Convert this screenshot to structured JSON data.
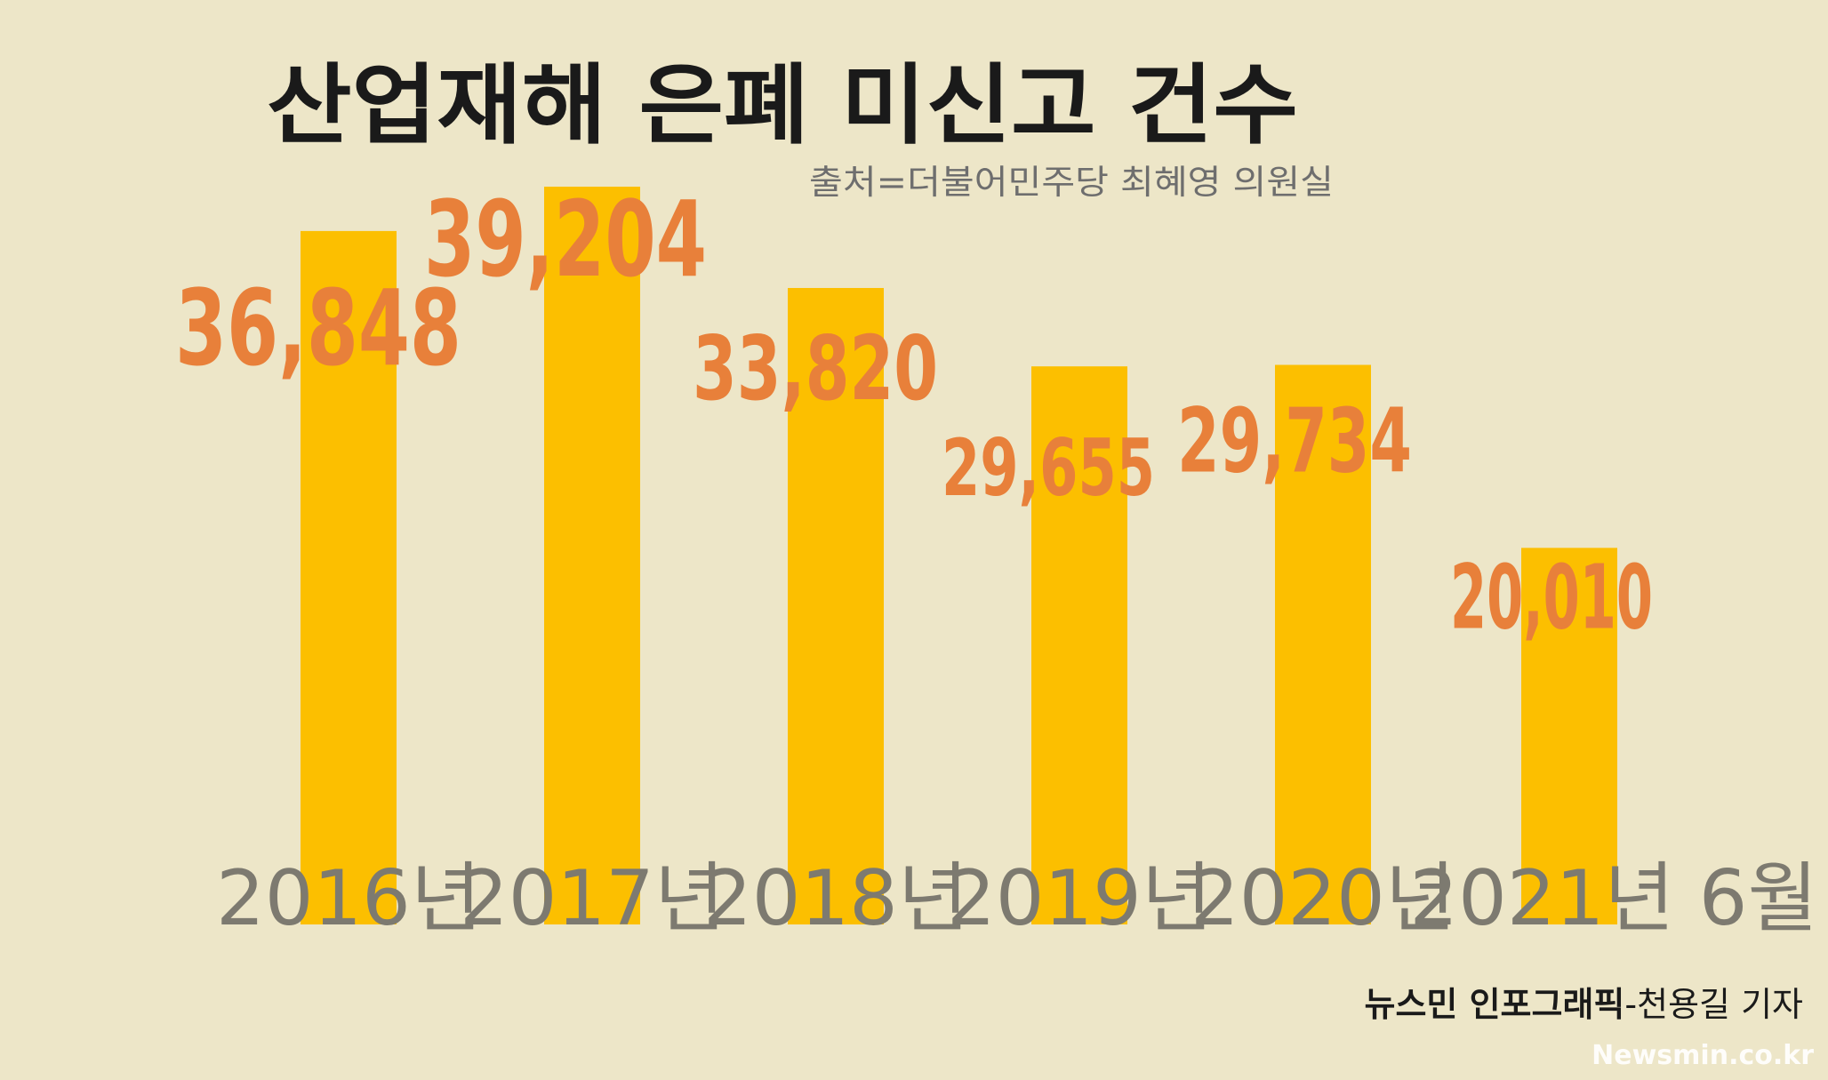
{
  "chart_data": {
    "type": "bar",
    "title": "산업재해 은폐 미신고 건수",
    "subtitle": "출처=더불어민주당 최혜영 의원실",
    "categories": [
      "2016년",
      "2017년",
      "2018년",
      "2019년",
      "2020년",
      "2021년 6월"
    ],
    "values": [
      36848,
      39204,
      33820,
      29655,
      29734,
      20010
    ],
    "value_labels": [
      "36,848",
      "39,204",
      "33,820",
      "29,655",
      "29,734",
      "20,010"
    ],
    "bar_color": "#fcbf00",
    "label_color": "#e8803a",
    "grid": false,
    "legend": "none"
  },
  "credit": {
    "brand": "뉴스민 인포그래픽",
    "author": "-천용길 기자"
  },
  "watermark": "Newsmin.co.kr"
}
